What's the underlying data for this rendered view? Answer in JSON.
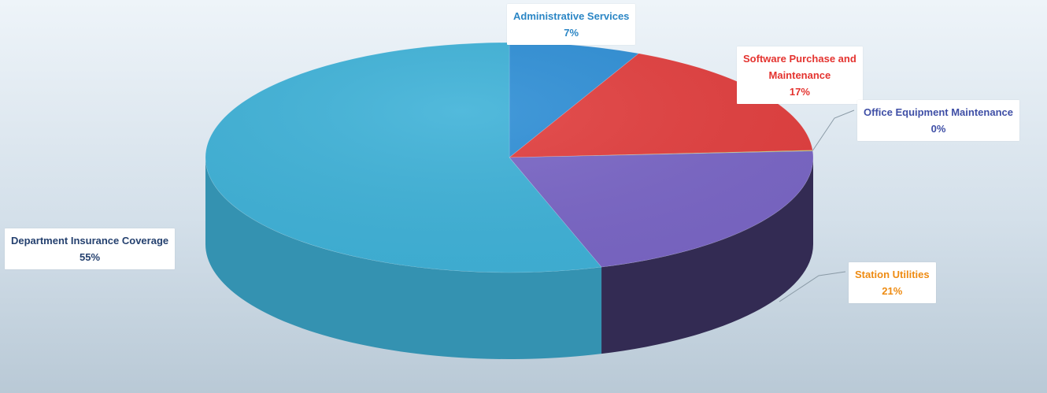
{
  "chart_data": {
    "type": "pie",
    "title": "",
    "slices": [
      {
        "label": "Administrative Services",
        "percent": 7,
        "color": "#2f8fd6",
        "label_color": "#2b86c5"
      },
      {
        "label": "Software Purchase and Maintenance",
        "percent": 17,
        "color": "#e23f3f",
        "label_color": "#e4332f"
      },
      {
        "label": "Office Equipment Maintenance",
        "percent": 0,
        "color": "#9bc23b",
        "label_color": "#3f4fa6"
      },
      {
        "label": "Station Utilities",
        "percent": 21,
        "color": "#7a66c6",
        "label_color": "#ee8b12"
      },
      {
        "label": "Department Insurance Coverage",
        "percent": 55,
        "color": "#3fb2d8",
        "label_color": "#25416f"
      }
    ],
    "labels": {
      "admin": {
        "line1": "Administrative Services",
        "pct": "7%"
      },
      "software": {
        "line1": "Software Purchase and",
        "line2": "Maintenance",
        "pct": "17%"
      },
      "office": {
        "line1": "Office Equipment Maintenance",
        "pct": "0%"
      },
      "station": {
        "line1": "Station Utilities",
        "pct": "21%"
      },
      "dept": {
        "line1": "Department Insurance Coverage",
        "pct": "55%"
      }
    }
  }
}
